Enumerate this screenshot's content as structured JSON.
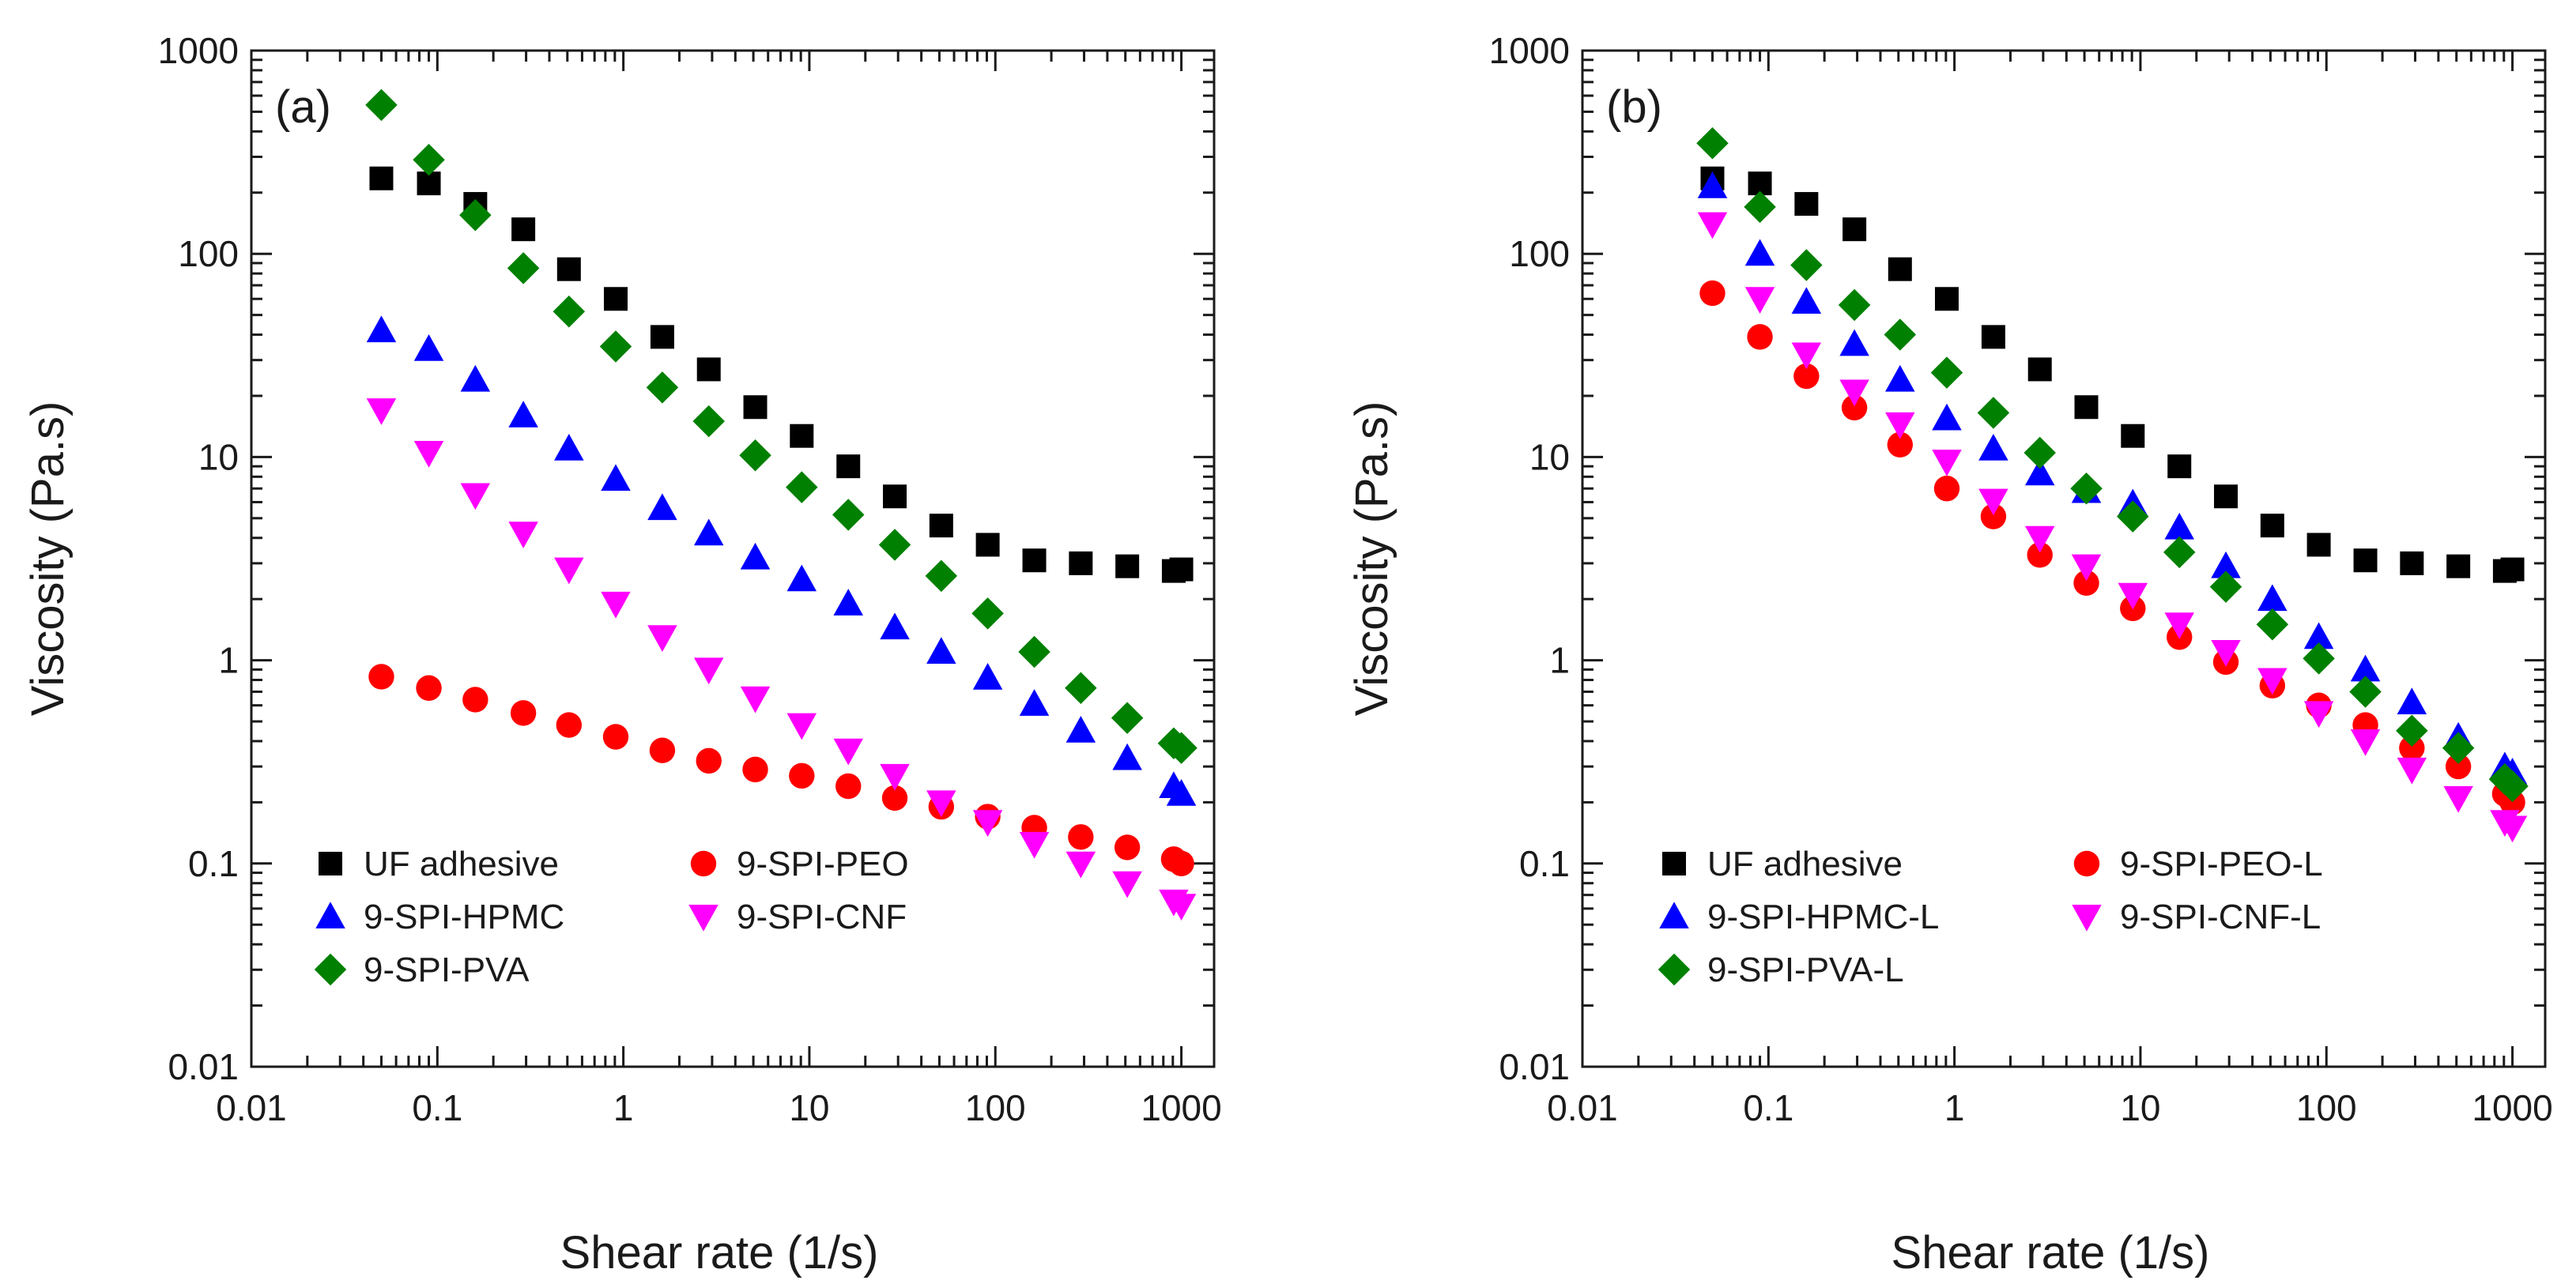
{
  "chart_data": [
    {
      "type": "scatter",
      "panel_label": "(a)",
      "xlabel": "Shear rate (1/s)",
      "ylabel": "Viscosity (Pa.s)",
      "xscale": "log",
      "yscale": "log",
      "xlim": [
        0.01,
        1500
      ],
      "ylim": [
        0.01,
        1000
      ],
      "x_ticks": [
        0.01,
        0.1,
        1,
        10,
        100,
        1000
      ],
      "x_tick_labels": [
        "0.01",
        "0.1",
        "1",
        "10",
        "100",
        "1000"
      ],
      "y_ticks": [
        0.01,
        0.1,
        1,
        10,
        100,
        1000
      ],
      "y_tick_labels": [
        "0.01",
        "0.1",
        "1",
        "10",
        "100",
        "1000"
      ],
      "legend": {
        "placement": "bottom-left",
        "columns": 2
      },
      "x": [
        0.05,
        0.09,
        0.16,
        0.29,
        0.51,
        0.91,
        1.62,
        2.88,
        5.12,
        9.1,
        16.2,
        28.8,
        51.2,
        91,
        162,
        288,
        512,
        910,
        1000
      ],
      "series": [
        {
          "name": "UF adhesive",
          "marker": "square",
          "color": "#000000",
          "values": [
            235,
            222,
            176,
            132,
            84,
            60,
            39,
            27,
            17.6,
            12.7,
            9,
            6.4,
            4.6,
            3.7,
            3.1,
            3.0,
            2.9,
            2.75,
            2.8
          ]
        },
        {
          "name": "9-SPI-PEO",
          "marker": "circle",
          "color": "#ff0000",
          "values": [
            0.83,
            0.73,
            0.64,
            0.55,
            0.48,
            0.42,
            0.36,
            0.32,
            0.29,
            0.27,
            0.24,
            0.21,
            0.19,
            0.17,
            0.15,
            0.135,
            0.12,
            0.105,
            0.1
          ]
        },
        {
          "name": "9-SPI-HPMC",
          "marker": "triangle-up",
          "color": "#0000ff",
          "values": [
            42,
            34,
            24,
            16,
            11,
            7.8,
            5.6,
            4.2,
            3.2,
            2.5,
            1.9,
            1.45,
            1.1,
            0.82,
            0.61,
            0.45,
            0.33,
            0.24,
            0.22
          ]
        },
        {
          "name": "9-SPI-CNF",
          "marker": "triangle-down",
          "color": "#ff00ff",
          "values": [
            17,
            10.5,
            6.5,
            4.2,
            2.8,
            1.9,
            1.3,
            0.9,
            0.65,
            0.48,
            0.36,
            0.27,
            0.2,
            0.16,
            0.125,
            0.1,
            0.08,
            0.065,
            0.062
          ]
        },
        {
          "name": "9-SPI-PVA",
          "marker": "diamond",
          "color": "#008000",
          "values": [
            540,
            290,
            155,
            85,
            52,
            35,
            22,
            15,
            10.2,
            7.1,
            5.2,
            3.7,
            2.6,
            1.7,
            1.1,
            0.73,
            0.52,
            0.39,
            0.37
          ]
        }
      ]
    },
    {
      "type": "scatter",
      "panel_label": "(b)",
      "xlabel": "Shear rate (1/s)",
      "ylabel": "Viscosity (Pa.s)",
      "xscale": "log",
      "yscale": "log",
      "xlim": [
        0.01,
        1500
      ],
      "ylim": [
        0.01,
        1000
      ],
      "x_ticks": [
        0.01,
        0.1,
        1,
        10,
        100,
        1000
      ],
      "x_tick_labels": [
        "0.01",
        "0.1",
        "1",
        "10",
        "100",
        "1000"
      ],
      "y_ticks": [
        0.01,
        0.1,
        1,
        10,
        100,
        1000
      ],
      "y_tick_labels": [
        "0.01",
        "0.1",
        "1",
        "10",
        "100",
        "1000"
      ],
      "legend": {
        "placement": "bottom-left",
        "columns": 2
      },
      "x": [
        0.05,
        0.09,
        0.16,
        0.29,
        0.51,
        0.91,
        1.62,
        2.88,
        5.12,
        9.1,
        16.2,
        28.8,
        51.2,
        91,
        162,
        288,
        512,
        910,
        1000
      ],
      "series": [
        {
          "name": "UF adhesive",
          "marker": "square",
          "color": "#000000",
          "values": [
            235,
            222,
            176,
            132,
            84,
            60,
            39,
            27,
            17.6,
            12.7,
            9,
            6.4,
            4.6,
            3.7,
            3.1,
            3.0,
            2.9,
            2.75,
            2.8
          ]
        },
        {
          "name": "9-SPI-PEO-L",
          "marker": "circle",
          "color": "#ff0000",
          "values": [
            64,
            39,
            25,
            17.5,
            11.5,
            7,
            5.1,
            3.3,
            2.4,
            1.8,
            1.3,
            0.98,
            0.75,
            0.6,
            0.48,
            0.37,
            0.3,
            0.22,
            0.2
          ]
        },
        {
          "name": "9-SPI-HPMC-L",
          "marker": "triangle-up",
          "color": "#0000ff",
          "values": [
            215,
            100,
            58,
            36,
            24,
            15.5,
            11,
            8.3,
            6.8,
            5.9,
            4.5,
            2.9,
            2.0,
            1.3,
            0.9,
            0.62,
            0.42,
            0.3,
            0.28
          ]
        },
        {
          "name": "9-SPI-CNF-L",
          "marker": "triangle-down",
          "color": "#ff00ff",
          "values": [
            140,
            60,
            32,
            21,
            14.5,
            9.5,
            6.1,
            4.0,
            2.9,
            2.1,
            1.5,
            1.1,
            0.8,
            0.55,
            0.4,
            0.29,
            0.21,
            0.16,
            0.15
          ]
        },
        {
          "name": "9-SPI-PVA-L",
          "marker": "diamond",
          "color": "#008000",
          "values": [
            350,
            170,
            88,
            56,
            40,
            26,
            16.5,
            10.5,
            7.0,
            5.1,
            3.4,
            2.3,
            1.5,
            1.02,
            0.7,
            0.45,
            0.37,
            0.26,
            0.24
          ]
        }
      ]
    }
  ]
}
